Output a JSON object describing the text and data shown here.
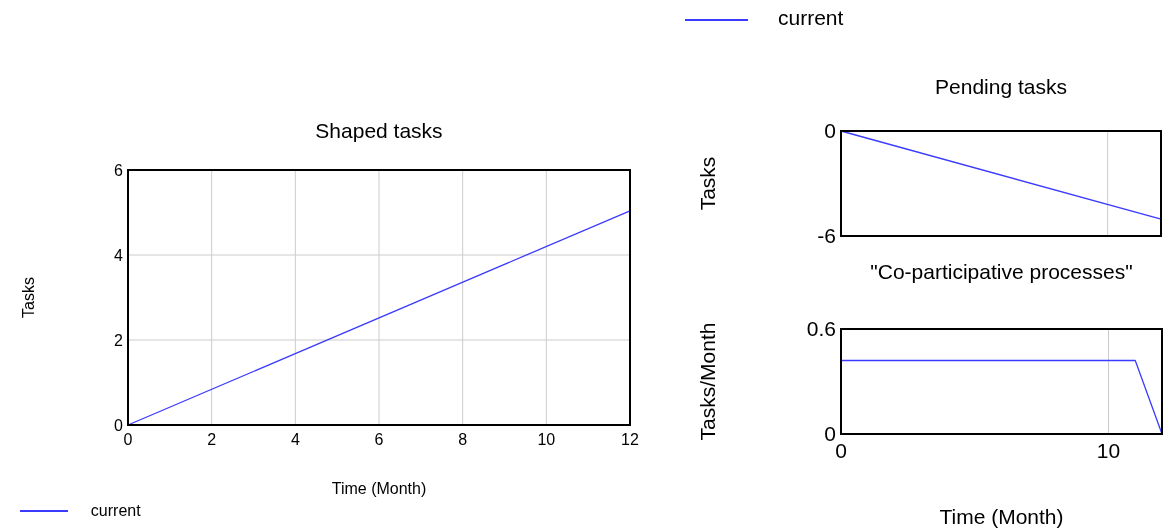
{
  "chart_data": [
    {
      "type": "line",
      "title": "Shaped tasks",
      "xlabel": "Time (Month)",
      "ylabel": "Tasks",
      "xlim": [
        0,
        12
      ],
      "xticks": [
        0,
        2,
        4,
        6,
        8,
        10,
        12
      ],
      "ylim": [
        0,
        6
      ],
      "yticks": [
        0,
        2,
        4,
        6
      ],
      "grid": true,
      "legend": "bottom left",
      "series": [
        {
          "name": "current",
          "color": "#3b3bff",
          "x": [
            0,
            12
          ],
          "values": [
            0,
            5.04
          ]
        }
      ]
    },
    {
      "type": "line",
      "title": "Pending tasks",
      "ylabel": "Tasks",
      "xlim": [
        0,
        12
      ],
      "xticks": [
        0,
        10
      ],
      "ylim": [
        -6,
        0
      ],
      "yticks": [
        -6,
        0
      ],
      "grid": "x",
      "tick_labels": "y",
      "legend": "top",
      "series": [
        {
          "name": "current",
          "color": "#3b3bff",
          "x": [
            0,
            12
          ],
          "values": [
            0,
            -5.04
          ]
        }
      ]
    },
    {
      "type": "line",
      "title": "\"Co-participative processes\"",
      "xlabel": "Time (Month)",
      "ylabel": "Tasks/Month",
      "xlim": [
        0,
        12
      ],
      "xticks": [
        0,
        10
      ],
      "ylim": [
        0,
        0.6
      ],
      "yticks": [
        0,
        0.6
      ],
      "grid": "x",
      "series": [
        {
          "color": "#3b3bff",
          "x": [
            0,
            11,
            12
          ],
          "values": [
            0.42,
            0.42,
            0
          ]
        }
      ]
    }
  ]
}
